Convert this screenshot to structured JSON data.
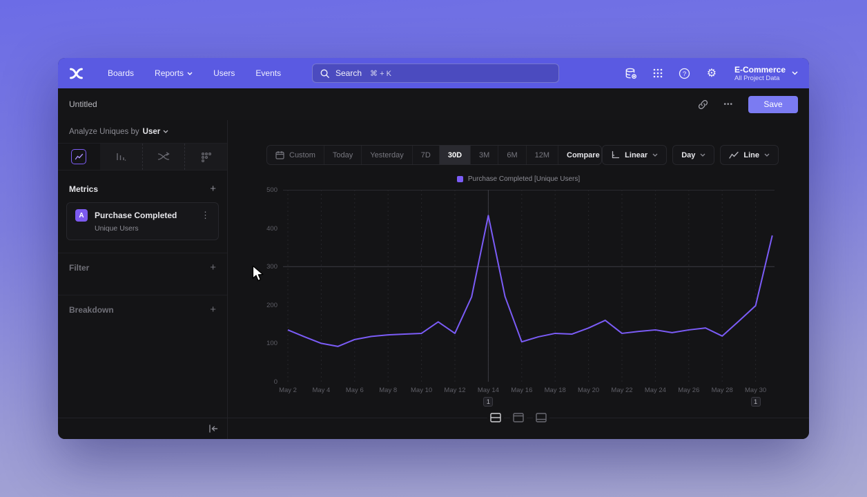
{
  "nav": {
    "items": [
      {
        "label": "Boards"
      },
      {
        "label": "Reports",
        "has_menu": true
      },
      {
        "label": "Users"
      },
      {
        "label": "Events"
      }
    ],
    "search": {
      "placeholder": "Search",
      "shortcut": "⌘ + K"
    },
    "project": {
      "name": "E-Commerce",
      "scope": "All Project Data"
    }
  },
  "titlebar": {
    "title": "Untitled",
    "more_label": "•••",
    "save_label": "Save"
  },
  "sidebar": {
    "analyze_prefix": "Analyze Uniques by",
    "analyze_value": "User",
    "metrics_label": "Metrics",
    "metric_card": {
      "badge": "A",
      "event": "Purchase Completed",
      "measure": "Unique Users"
    },
    "filter_label": "Filter",
    "breakdown_label": "Breakdown"
  },
  "toolbar": {
    "ranges": [
      "Custom",
      "Today",
      "Yesterday",
      "7D",
      "30D",
      "3M",
      "6M",
      "12M"
    ],
    "selected_range": "30D",
    "compare_label": "Compare",
    "scale_label": "Linear",
    "interval_label": "Day",
    "chart_type_label": "Line"
  },
  "chart_data": {
    "type": "line",
    "title": "",
    "x": [
      "May 2",
      "May 3",
      "May 4",
      "May 5",
      "May 6",
      "May 7",
      "May 8",
      "May 9",
      "May 10",
      "May 11",
      "May 12",
      "May 13",
      "May 14",
      "May 15",
      "May 16",
      "May 17",
      "May 18",
      "May 19",
      "May 20",
      "May 21",
      "May 22",
      "May 23",
      "May 24",
      "May 25",
      "May 26",
      "May 27",
      "May 28",
      "May 29",
      "May 30",
      "May 31"
    ],
    "tick_every": 2,
    "ylim": [
      0,
      500
    ],
    "yticks": [
      0,
      100,
      200,
      300,
      400,
      500
    ],
    "series": [
      {
        "name": "Purchase Completed [Unique Users]",
        "color": "#7B5CF7",
        "values": [
          135,
          117,
          100,
          92,
          110,
          118,
          122,
          124,
          126,
          156,
          126,
          221,
          433,
          222,
          104,
          117,
          126,
          124,
          140,
          160,
          126,
          131,
          135,
          128,
          135,
          140,
          119,
          158,
          198,
          381
        ]
      }
    ],
    "legend_position": "top",
    "grid": "vertical-dashed",
    "guides": {
      "h_value": 300,
      "v_day_index": 12
    },
    "annotations": [
      {
        "label": "1",
        "day_index": 12
      },
      {
        "label": "1",
        "day_index": 28
      }
    ]
  },
  "bottom": {
    "view_toggles": [
      "split-view",
      "table-top",
      "table-bottom"
    ],
    "active_toggle": "split-view"
  },
  "colors": {
    "accent": "#7C5CF8",
    "nav": "#5A5AE2",
    "save_button": "#7B7BF2",
    "line": "#7B5CF7",
    "window_bg": "#151517"
  }
}
